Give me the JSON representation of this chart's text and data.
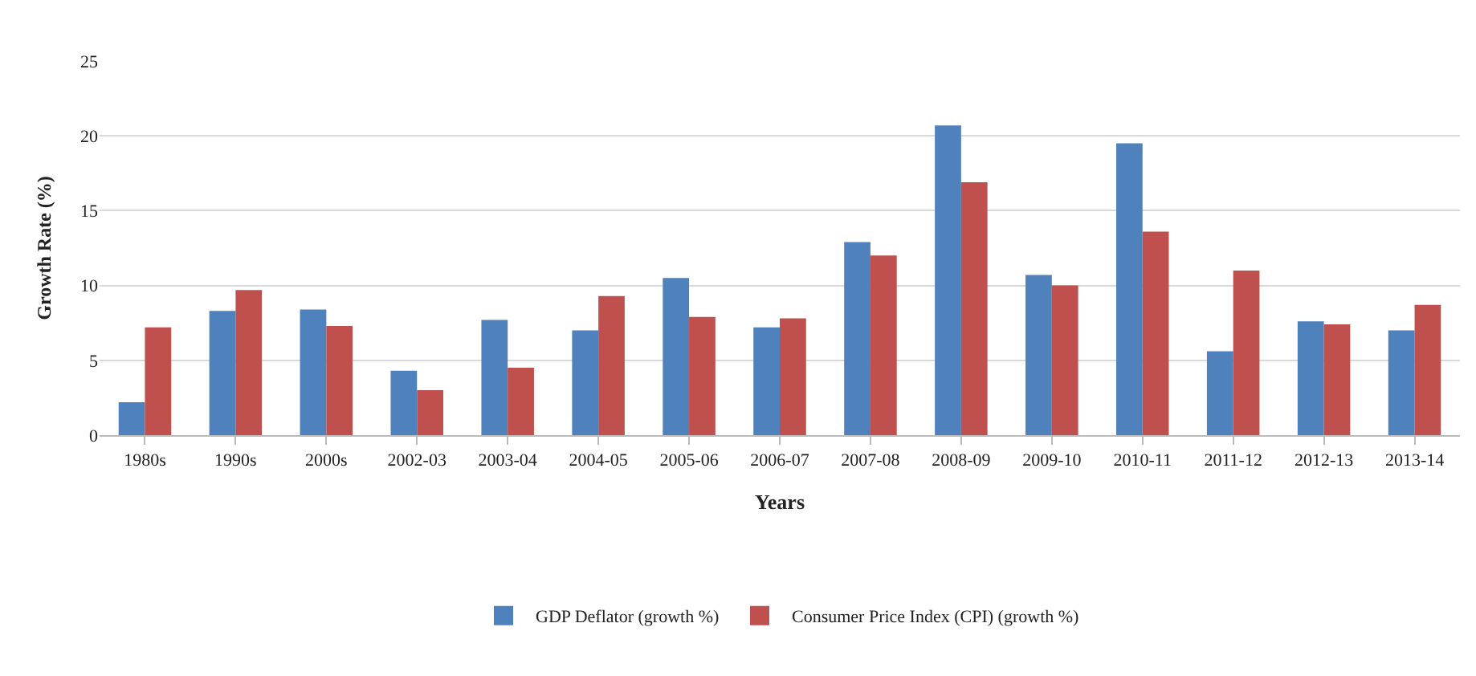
{
  "chart_data": {
    "type": "bar",
    "xlabel": "Years",
    "ylabel": "Growth Rate (%)",
    "categories": [
      "1980s",
      "1990s",
      "2000s",
      "2002-03",
      "2003-04",
      "2004-05",
      "2005-06",
      "2006-07",
      "2007-08",
      "2008-09",
      "2009-10",
      "2010-11",
      "2011-12",
      "2012-13",
      "2013-14"
    ],
    "series": [
      {
        "name": "GDP Deflator (growth %)",
        "color": "#4f81bd",
        "values": [
          2.2,
          8.3,
          8.4,
          4.3,
          7.7,
          7.0,
          10.5,
          7.2,
          12.9,
          20.7,
          10.7,
          19.5,
          5.6,
          7.6,
          7.0
        ]
      },
      {
        "name": "Consumer Price Index (CPI) (growth %)",
        "color": "#c0504d",
        "values": [
          7.2,
          9.7,
          7.3,
          3.0,
          4.5,
          9.3,
          7.9,
          7.8,
          12.0,
          16.9,
          10.0,
          13.6,
          11.0,
          7.4,
          8.7
        ]
      }
    ],
    "ylim": [
      0,
      25
    ],
    "yticks": [
      0,
      5,
      10,
      15,
      20,
      25
    ],
    "grid": "y",
    "legend": "bottom"
  }
}
